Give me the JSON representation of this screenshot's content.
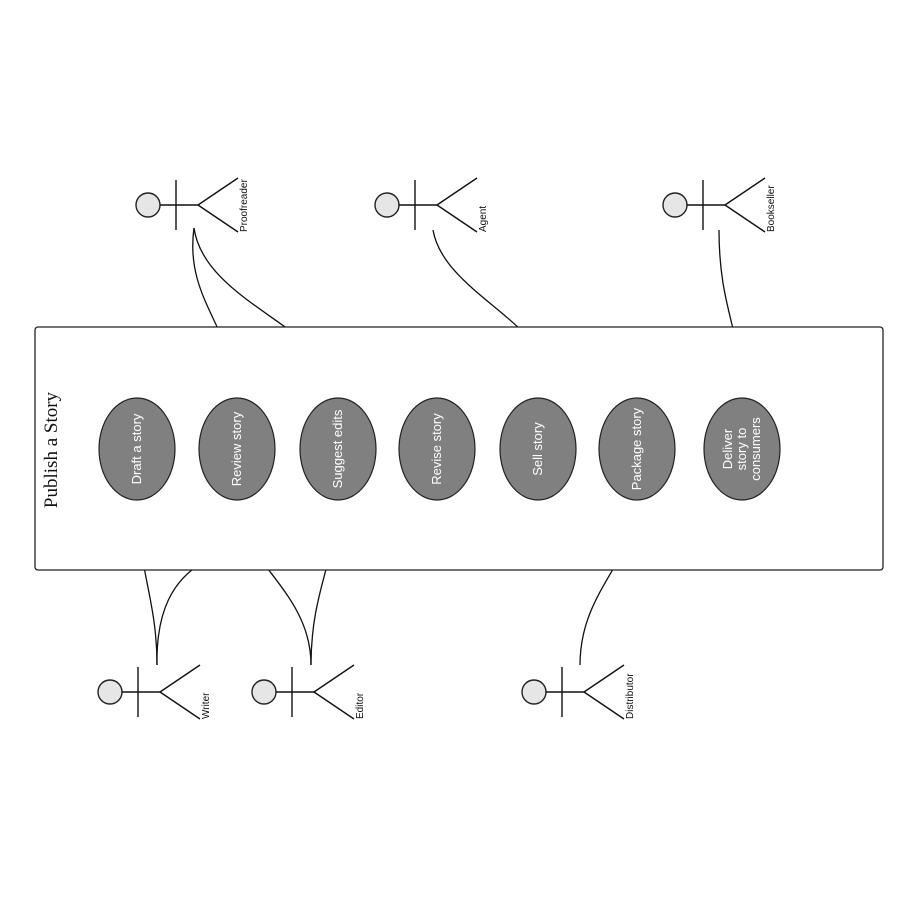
{
  "colors": {
    "use_case_fill": "#808080",
    "actor_head_fill": "#e6e6e6",
    "line": "#111111"
  },
  "system": {
    "title": "Publish a Story"
  },
  "use_cases": [
    {
      "id": "draft",
      "lines": [
        "Draft a story"
      ]
    },
    {
      "id": "review",
      "lines": [
        "Review story"
      ]
    },
    {
      "id": "suggest",
      "lines": [
        "Suggest edits"
      ]
    },
    {
      "id": "revise",
      "lines": [
        "Revise story"
      ]
    },
    {
      "id": "sell",
      "lines": [
        "Sell story"
      ]
    },
    {
      "id": "package",
      "lines": [
        "Package story"
      ]
    },
    {
      "id": "deliver",
      "lines": [
        "Deliver",
        "story to",
        "consumers"
      ]
    }
  ],
  "actors": [
    {
      "id": "proofreader",
      "label": "Proofreader"
    },
    {
      "id": "agent",
      "label": "Agent"
    },
    {
      "id": "bookseller",
      "label": "Bookseller"
    },
    {
      "id": "writer",
      "label": "Writer"
    },
    {
      "id": "editor",
      "label": "Editor"
    },
    {
      "id": "distributor",
      "label": "Distributor"
    }
  ],
  "associations": [
    {
      "actor": "proofreader",
      "use_case": "review"
    },
    {
      "actor": "proofreader",
      "use_case": "suggest"
    },
    {
      "actor": "agent",
      "use_case": "sell"
    },
    {
      "actor": "bookseller",
      "use_case": "deliver"
    },
    {
      "actor": "writer",
      "use_case": "draft"
    },
    {
      "actor": "writer",
      "use_case": "revise"
    },
    {
      "actor": "editor",
      "use_case": "review"
    },
    {
      "actor": "editor",
      "use_case": "suggest"
    },
    {
      "actor": "distributor",
      "use_case": "package"
    }
  ]
}
